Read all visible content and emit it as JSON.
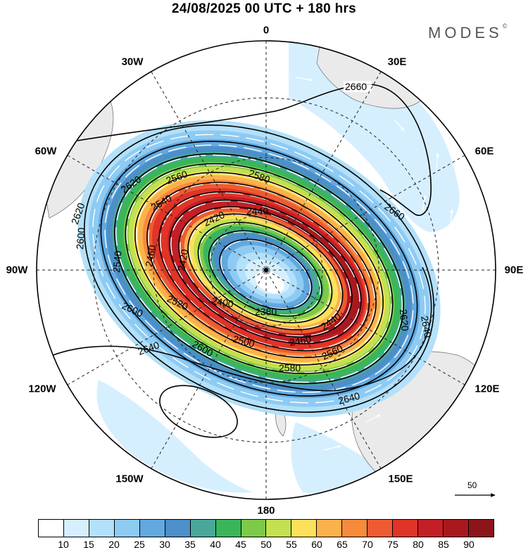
{
  "title": "24/08/2025  00 UTC  + 180 hrs",
  "brand": {
    "name": "MODES",
    "mark": "©"
  },
  "meridian_labels": {
    "0": "0",
    "30E": "30E",
    "60E": "60E",
    "90E": "90E",
    "120E": "120E",
    "150E": "150E",
    "180": "180",
    "150W": "150W",
    "120W": "120W",
    "90W": "90W",
    "60W": "60W",
    "30W": "30W"
  },
  "contours": [
    {
      "label": "2660",
      "kind": "outer"
    },
    {
      "label": "2640",
      "kind": "outer"
    },
    {
      "label": "2620",
      "kind": "jet"
    },
    {
      "label": "2600",
      "kind": "jet"
    },
    {
      "label": "2580",
      "kind": "jet"
    },
    {
      "label": "2560",
      "kind": "jet"
    },
    {
      "label": "2540",
      "kind": "jet"
    },
    {
      "label": "2520",
      "kind": "jet"
    },
    {
      "label": "2500",
      "kind": "jet"
    },
    {
      "label": "2480",
      "kind": "jet"
    },
    {
      "label": "2460",
      "kind": "jet"
    },
    {
      "label": "2440",
      "kind": "jet"
    },
    {
      "label": "2420",
      "kind": "jet"
    },
    {
      "label": "2400",
      "kind": "core"
    },
    {
      "label": "2380",
      "kind": "core"
    }
  ],
  "vector_scale": {
    "label": "50"
  },
  "colorbar": {
    "colors": [
      "#ffffff",
      "#d6efff",
      "#b3e0fa",
      "#8ecbf3",
      "#62a9e0",
      "#4c8fc9",
      "#4aa89b",
      "#3ab65a",
      "#7dca4a",
      "#c3e050",
      "#fde15a",
      "#fbb24c",
      "#f88a3b",
      "#ee5b32",
      "#e03428",
      "#c41f27",
      "#a8191f",
      "#8b1519"
    ],
    "ticks": [
      "10",
      "15",
      "20",
      "25",
      "30",
      "35",
      "40",
      "45",
      "50",
      "55",
      "60",
      "65",
      "70",
      "75",
      "80",
      "85",
      "90"
    ]
  }
}
